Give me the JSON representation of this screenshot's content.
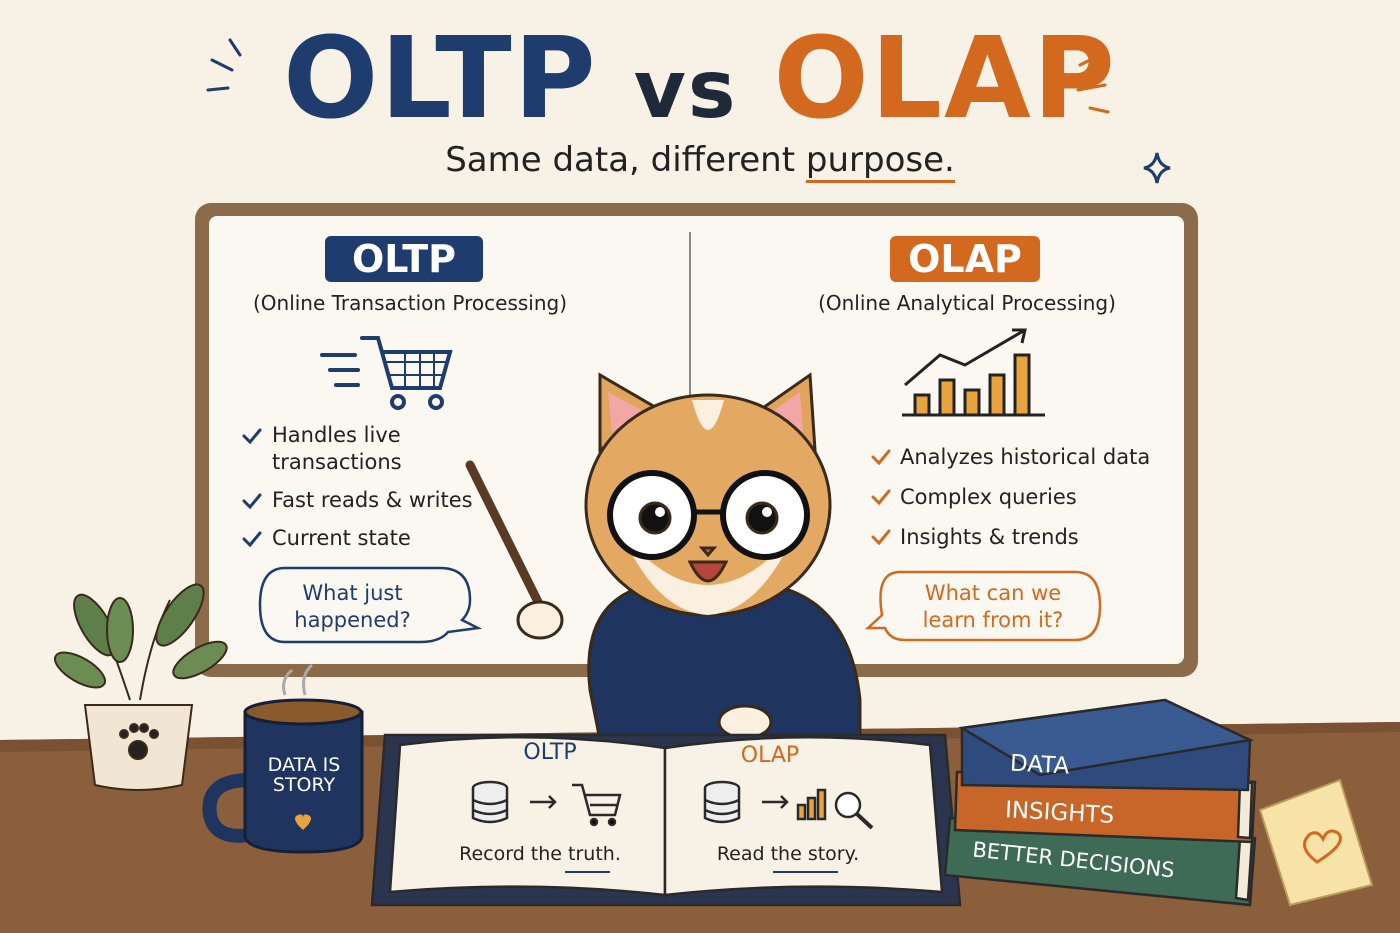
{
  "title": {
    "left": "OLTP",
    "middle": "vs",
    "right": "OLAP"
  },
  "subtitle": {
    "lead": "Same data, different",
    "emphasis": "purpose."
  },
  "board": {
    "oltp": {
      "badge": "OLTP",
      "subtitle": "(Online Transaction Processing)",
      "points": [
        "Handles live transactions",
        "Fast reads & writes",
        "Current state"
      ],
      "bubble": "What just happened?"
    },
    "olap": {
      "badge": "OLAP",
      "subtitle": "(Online Analytical Processing)",
      "points": [
        "Analyzes historical data",
        "Complex queries",
        "Insights & trends"
      ],
      "bubble": "What can we learn from it?"
    }
  },
  "book": {
    "oltp": {
      "heading": "OLTP",
      "caption": "Record the truth."
    },
    "olap": {
      "heading": "OLAP",
      "caption": "Read the story."
    }
  },
  "mug": "DATA IS STORY",
  "books": [
    "DATA",
    "INSIGHTS",
    "BETTER DECISIONS"
  ]
}
